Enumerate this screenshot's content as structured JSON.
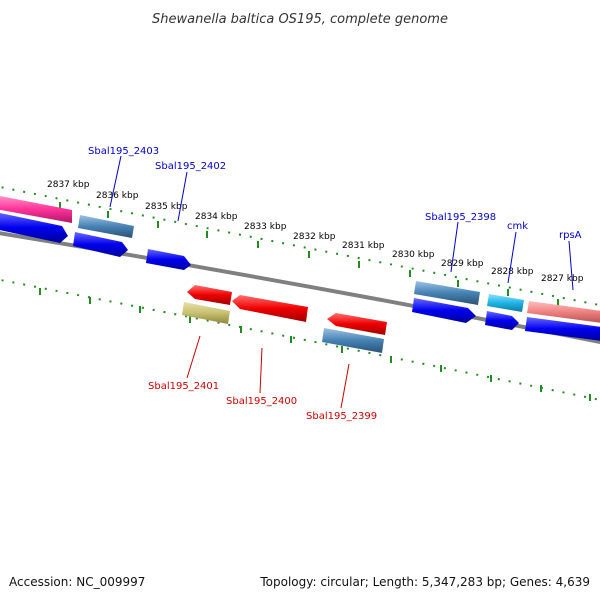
{
  "title": "Shewanella baltica OS195, complete genome",
  "footer": {
    "accession": "Accession: NC_009997",
    "summary": "Topology: circular; Length: 5,347,283 bp; Genes: 4,639"
  },
  "ticks": [
    "2837 kbp",
    "2836 kbp",
    "2835 kbp",
    "2834 kbp",
    "2833 kbp",
    "2832 kbp",
    "2831 kbp",
    "2830 kbp",
    "2829 kbp",
    "2828 kbp",
    "2827 kbp"
  ],
  "genes_upper": [
    "Sbal195_2403",
    "Sbal195_2402",
    "Sbal195_2398",
    "cmk",
    "rpsA"
  ],
  "genes_lower": [
    "Sbal195_2401",
    "Sbal195_2400",
    "Sbal195_2399"
  ],
  "colors": {
    "forward_label": "#0000cc",
    "reverse_label": "#cc0000",
    "backbone": "#808080",
    "tick": "#228b22",
    "cds_blue": "#0000ee",
    "cds_red": "#ee0000",
    "rrna_pink": "#ff3399",
    "steel_blue": "#4682b4",
    "cyan": "#1eb4e6",
    "olive": "#c8c070",
    "salmon": "#f08080"
  }
}
